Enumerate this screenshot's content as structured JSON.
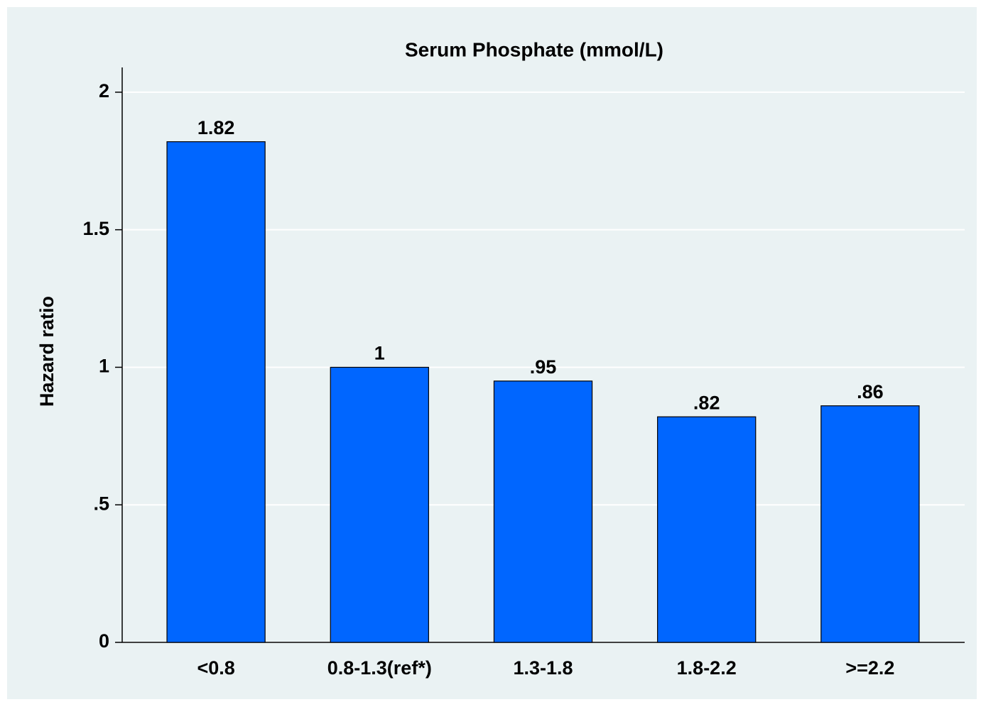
{
  "chart_data": {
    "type": "bar",
    "title": "Serum Phosphate (mmol/L)",
    "y_label": "Hazard ratio",
    "categories": [
      "<0.8",
      "0.8-1.3(ref*)",
      "1.3-1.8",
      "1.8-2.2",
      ">=2.2"
    ],
    "values": [
      1.82,
      1,
      0.95,
      0.82,
      0.86
    ],
    "value_labels": [
      "1.82",
      "1",
      ".95",
      ".82",
      ".86"
    ],
    "color": "#0066ff",
    "ylim": [
      0,
      2.09
    ],
    "yticks": [
      0,
      {
        "value": 0.5,
        "label": ".5"
      },
      1,
      1.5,
      2
    ],
    "grid": true
  }
}
